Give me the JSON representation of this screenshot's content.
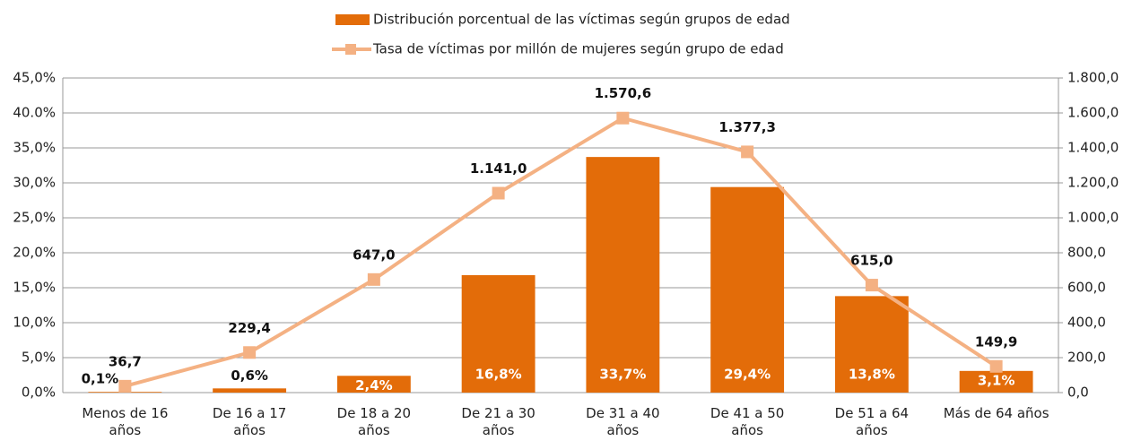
{
  "chart_data": {
    "type": "bar+line",
    "categories": [
      "Menos de 16 años",
      "De 16 a 17 años",
      "De 18 a 20 años",
      "De 21 a 30 años",
      "De 31 a 40 años",
      "De 41 a 50 años",
      "De 51 a 64 años",
      "Más de 64 años"
    ],
    "series": [
      {
        "name": "Distribución porcentual de las víctimas según grupos de edad",
        "type": "bar",
        "color": "#e36c09",
        "values": [
          0.1,
          0.6,
          2.4,
          16.8,
          33.7,
          29.4,
          13.8,
          3.1
        ],
        "value_labels": [
          "0,1%",
          "0,6%",
          "2,4%",
          "16,8%",
          "33,7%",
          "29,4%",
          "13,8%",
          "3,1%"
        ]
      },
      {
        "name": "Tasa de víctimas por millón de mujeres según grupo de edad",
        "type": "line",
        "axis": "y2",
        "color": "#f4b183",
        "values": [
          36.7,
          229.4,
          647.0,
          1141.0,
          1570.6,
          1377.3,
          615.0,
          149.9
        ],
        "value_labels": [
          "36,7",
          "229,4",
          "647,0",
          "1.141,0",
          "1.570,6",
          "1.377,3",
          "615,0",
          "149,9"
        ]
      }
    ],
    "ylim": [
      0,
      45
    ],
    "yticks": [
      {
        "value": 0,
        "label": "0,0%"
      },
      {
        "value": 5,
        "label": "5,0%"
      },
      {
        "value": 10,
        "label": "10,0%"
      },
      {
        "value": 15,
        "label": "15,0%"
      },
      {
        "value": 20,
        "label": "20,0%"
      },
      {
        "value": 25,
        "label": "25,0%"
      },
      {
        "value": 30,
        "label": "30,0%"
      },
      {
        "value": 35,
        "label": "35,0%"
      },
      {
        "value": 40,
        "label": "40.0%"
      },
      {
        "value": 45,
        "label": "45,0%"
      }
    ],
    "y2lim": [
      0,
      1800
    ],
    "y2ticks": [
      {
        "value": 0,
        "label": "0,0"
      },
      {
        "value": 200,
        "label": "200,0"
      },
      {
        "value": 400,
        "label": "400,0"
      },
      {
        "value": 600,
        "label": "600,0"
      },
      {
        "value": 800,
        "label": "800,0"
      },
      {
        "value": 1000,
        "label": "1.000,0"
      },
      {
        "value": 1200,
        "label": "1.200,0"
      },
      {
        "value": 1400,
        "label": "1.400,0"
      },
      {
        "value": 1600,
        "label": "1.600,0"
      },
      {
        "value": 1800,
        "label": "1.800,0"
      }
    ],
    "grid": true,
    "legend": "top"
  }
}
